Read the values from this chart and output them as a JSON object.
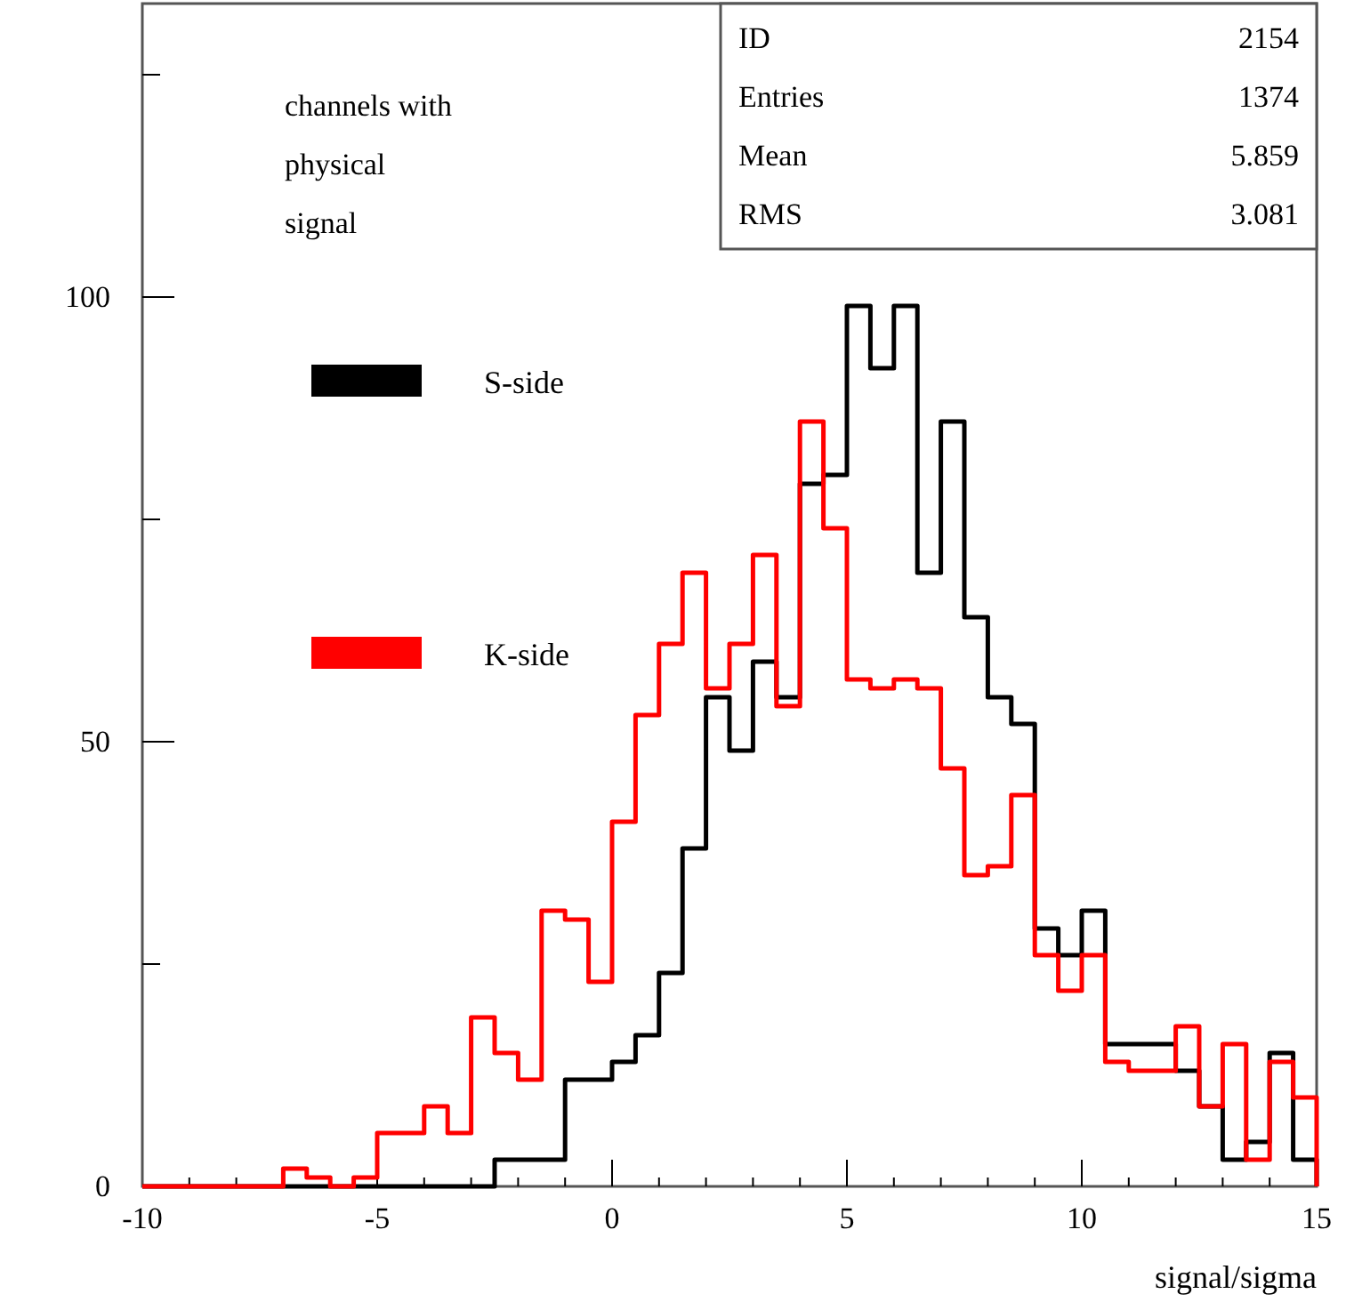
{
  "chart_data": {
    "type": "histogram",
    "xlabel": "signal/sigma",
    "bins": [
      -10,
      -9.5,
      -9,
      -8.5,
      -8,
      -7.5,
      -7,
      -6.5,
      -6,
      -5.5,
      -5,
      -4.5,
      -4,
      -3.5,
      -3,
      -2.5,
      -2,
      -1.5,
      -1,
      -0.5,
      0,
      0.5,
      1,
      1.5,
      2,
      2.5,
      3,
      3.5,
      4,
      4.5,
      5,
      5.5,
      6,
      6.5,
      7,
      7.5,
      8,
      8.5,
      9,
      9.5,
      10,
      10.5,
      11,
      11.5,
      12,
      12.5,
      13,
      13.5,
      14,
      14.5,
      15
    ],
    "series": [
      {
        "name": "S-side",
        "color": "#000000",
        "values": [
          0,
          0,
          0,
          0,
          0,
          0,
          0,
          0,
          0,
          0,
          0,
          0,
          0,
          0,
          0,
          3,
          3,
          3,
          12,
          12,
          14,
          17,
          24,
          38,
          55,
          49,
          59,
          55,
          79,
          80,
          99,
          92,
          99,
          69,
          86,
          64,
          55,
          52,
          29,
          26,
          31,
          16,
          16,
          16,
          13,
          9,
          3,
          5,
          15,
          3
        ]
      },
      {
        "name": "K-side",
        "color": "#ff0000",
        "values": [
          0,
          0,
          0,
          0,
          0,
          0,
          2,
          1,
          0,
          1,
          6,
          6,
          9,
          6,
          19,
          15,
          12,
          31,
          30,
          23,
          41,
          53,
          61,
          69,
          56,
          61,
          71,
          54,
          86,
          74,
          57,
          56,
          57,
          56,
          47,
          35,
          36,
          44,
          26,
          22,
          26,
          14,
          13,
          13,
          18,
          9,
          16,
          3,
          14,
          10
        ]
      }
    ],
    "xlim": [
      -10,
      15
    ],
    "xticks": [
      -10,
      {
        "value": -9,
        "label": null
      },
      {
        "value": -8,
        "label": null
      },
      {
        "value": -7,
        "label": null
      },
      {
        "value": -6,
        "label": null
      },
      -5,
      {
        "value": -4,
        "label": null
      },
      {
        "value": -3,
        "label": null
      },
      {
        "value": -2,
        "label": null
      },
      {
        "value": -1,
        "label": null
      },
      0,
      {
        "value": 1,
        "label": null
      },
      {
        "value": 2,
        "label": null
      },
      {
        "value": 3,
        "label": null
      },
      {
        "value": 4,
        "label": null
      },
      5,
      {
        "value": 6,
        "label": null
      },
      {
        "value": 7,
        "label": null
      },
      {
        "value": 8,
        "label": null
      },
      {
        "value": 9,
        "label": null
      },
      10,
      {
        "value": 11,
        "label": null
      },
      {
        "value": 12,
        "label": null
      },
      {
        "value": 13,
        "label": null
      },
      {
        "value": 14,
        "label": null
      },
      15
    ],
    "ylim": [
      0,
      133
    ],
    "yticks": [
      0,
      {
        "value": 25,
        "label": null
      },
      50,
      {
        "value": 75,
        "label": null
      },
      100,
      {
        "value": 125,
        "label": null
      }
    ],
    "legend": "top left",
    "annotations": [
      "channels with physical signal",
      "ID 2154",
      "Entries 1374",
      "Mean 5.859",
      "RMS 3.081"
    ]
  }
}
